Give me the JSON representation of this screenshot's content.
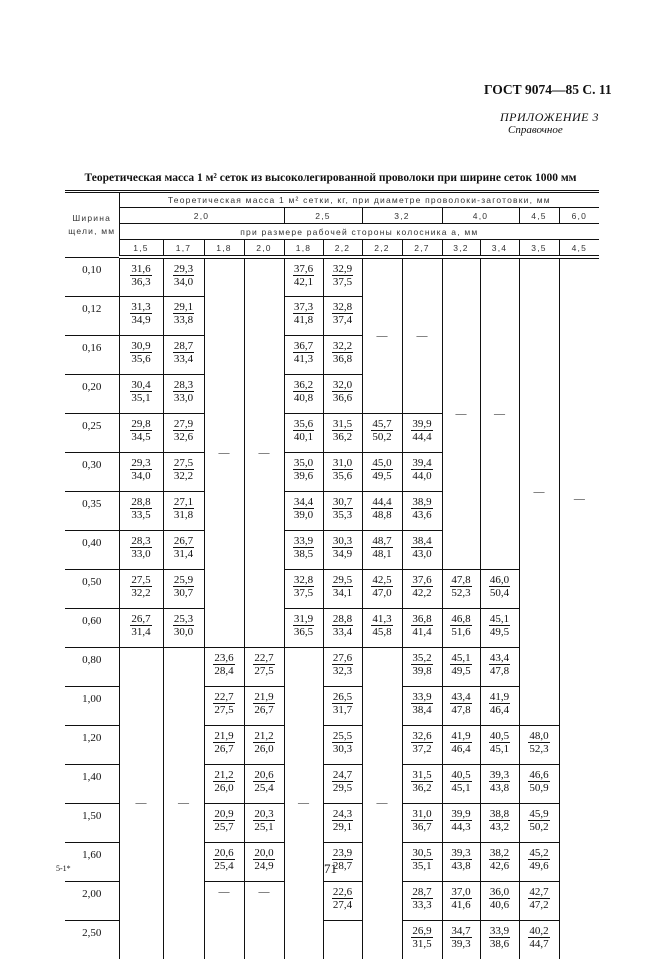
{
  "header": {
    "gost": "ГОСТ 9074—85 С. 11",
    "appendix": "ПРИЛОЖЕНИЕ 3",
    "reference": "Справочное"
  },
  "title": "Теоретическая масса 1 м² сеток из высоколегированной проволоки при ширине сеток 1000 мм",
  "table": {
    "width_header": "Ширина щели, мм",
    "mass_header": "Теоретическая масса 1 м² сетки, кг, при диаметре проволоки-заготовки, мм",
    "side_header": "при размере рабочей стороны колосника а, мм",
    "diameters": [
      {
        "label": "2,0",
        "cols": 4
      },
      {
        "label": "2,5",
        "cols": 2
      },
      {
        "label": "3,2",
        "cols": 2
      },
      {
        "label": "4,0",
        "cols": 2
      },
      {
        "label": "4,5",
        "cols": 1
      },
      {
        "label": "6,0",
        "cols": 1
      }
    ],
    "sides": [
      "1,5",
      "1,7",
      "1,8",
      "2,0",
      "1,8",
      "2,2",
      "2,2",
      "2,7",
      "3,2",
      "3,4",
      "3,5",
      "4,5"
    ],
    "widths": [
      "0,10",
      "0,12",
      "0,16",
      "0,20",
      "0,25",
      "0,30",
      "0,35",
      "0,40",
      "0,50",
      "0,60",
      "0,80",
      "1,00",
      "1,20",
      "1,40",
      "1,50",
      "1,60",
      "2,00",
      "2,50"
    ],
    "columns": [
      {
        "cells": [
          {
            "t": "31,6",
            "b": "36,3"
          },
          {
            "t": "31,3",
            "b": "34,9"
          },
          {
            "t": "30,9",
            "b": "35,6"
          },
          {
            "t": "30,4",
            "b": "35,1"
          },
          {
            "t": "29,8",
            "b": "34,5"
          },
          {
            "t": "29,3",
            "b": "34,0"
          },
          {
            "t": "28,8",
            "b": "33,5"
          },
          {
            "t": "28,3",
            "b": "33,0"
          },
          {
            "t": "27,5",
            "b": "32,2"
          },
          {
            "t": "26,7",
            "b": "31,4"
          },
          {
            "dash": "—",
            "span": 8
          }
        ]
      },
      {
        "cells": [
          {
            "t": "29,3",
            "b": "34,0"
          },
          {
            "t": "29,1",
            "b": "33,8"
          },
          {
            "t": "28,7",
            "b": "33,4"
          },
          {
            "t": "28,3",
            "b": "33,0"
          },
          {
            "t": "27,9",
            "b": "32,6"
          },
          {
            "t": "27,5",
            "b": "32,2"
          },
          {
            "t": "27,1",
            "b": "31,8"
          },
          {
            "t": "26,7",
            "b": "31,4"
          },
          {
            "t": "25,9",
            "b": "30,7"
          },
          {
            "t": "25,3",
            "b": "30,0"
          },
          {
            "dash": "—",
            "span": 8
          }
        ]
      },
      {
        "cells": [
          {
            "dash": "—",
            "span": 10
          },
          {
            "t": "23,6",
            "b": "28,4"
          },
          {
            "t": "22,7",
            "b": "27,5"
          },
          {
            "t": "21,9",
            "b": "26,7"
          },
          {
            "t": "21,2",
            "b": "26,0"
          },
          {
            "t": "20,9",
            "b": "25,7"
          },
          {
            "t": "20,6",
            "b": "25,4"
          },
          {
            "dash": "—",
            "span": 2
          }
        ]
      },
      {
        "cells": [
          {
            "dash": "—",
            "span": 10
          },
          {
            "t": "22,7",
            "b": "27,5"
          },
          {
            "t": "21,9",
            "b": "26,7"
          },
          {
            "t": "21,2",
            "b": "26,0"
          },
          {
            "t": "20,6",
            "b": "25,4"
          },
          {
            "t": "20,3",
            "b": "25,1"
          },
          {
            "t": "20,0",
            "b": "24,9"
          },
          {
            "dash": "—",
            "span": 2
          }
        ]
      },
      {
        "cells": [
          {
            "t": "37,6",
            "b": "42,1"
          },
          {
            "t": "37,3",
            "b": "41,8"
          },
          {
            "t": "36,7",
            "b": "41,3"
          },
          {
            "t": "36,2",
            "b": "40,8"
          },
          {
            "t": "35,6",
            "b": "40,1"
          },
          {
            "t": "35,0",
            "b": "39,6"
          },
          {
            "t": "34,4",
            "b": "39,0"
          },
          {
            "t": "33,9",
            "b": "38,5"
          },
          {
            "t": "32,8",
            "b": "37,5"
          },
          {
            "t": "31,9",
            "b": "36,5"
          },
          {
            "dash": "—",
            "span": 8
          }
        ]
      },
      {
        "cells": [
          {
            "t": "32,9",
            "b": "37,5"
          },
          {
            "t": "32,8",
            "b": "37,4"
          },
          {
            "t": "32,2",
            "b": "36,8"
          },
          {
            "t": "32,0",
            "b": "36,6"
          },
          {
            "t": "31,5",
            "b": "36,2"
          },
          {
            "t": "31,0",
            "b": "35,6"
          },
          {
            "t": "30,7",
            "b": "35,3"
          },
          {
            "t": "30,3",
            "b": "34,9"
          },
          {
            "t": "29,5",
            "b": "34,1"
          },
          {
            "t": "28,8",
            "b": "33,4"
          },
          {
            "t": "27,6",
            "b": "32,3"
          },
          {
            "t": "26,5",
            "b": "31,7"
          },
          {
            "t": "25,5",
            "b": "30,3"
          },
          {
            "t": "24,7",
            "b": "29,5"
          },
          {
            "t": "24,3",
            "b": "29,1"
          },
          {
            "t": "23,9",
            "b": "28,7"
          },
          {
            "t": "22,6",
            "b": "27,4"
          },
          {
            "empty": true
          }
        ]
      },
      {
        "cells": [
          {
            "dash": "—",
            "span": 4
          },
          {
            "t": "45,7",
            "b": "50,2"
          },
          {
            "t": "45,0",
            "b": "49,5"
          },
          {
            "t": "44,4",
            "b": "48,8"
          },
          {
            "t": "48,7",
            "b": "48,1"
          },
          {
            "t": "42,5",
            "b": "47,0"
          },
          {
            "t": "41,3",
            "b": "45,8"
          },
          {
            "dash": "—",
            "span": 8
          }
        ]
      },
      {
        "cells": [
          {
            "dash": "—",
            "span": 4
          },
          {
            "t": "39,9",
            "b": "44,4"
          },
          {
            "t": "39,4",
            "b": "44,0"
          },
          {
            "t": "38,9",
            "b": "43,6"
          },
          {
            "t": "38,4",
            "b": "43,0"
          },
          {
            "t": "37,6",
            "b": "42,2"
          },
          {
            "t": "36,8",
            "b": "41,4"
          },
          {
            "t": "35,2",
            "b": "39,8"
          },
          {
            "t": "33,9",
            "b": "38,4"
          },
          {
            "t": "32,6",
            "b": "37,2"
          },
          {
            "t": "31,5",
            "b": "36,2"
          },
          {
            "t": "31,0",
            "b": "36,7"
          },
          {
            "t": "30,5",
            "b": "35,1"
          },
          {
            "t": "28,7",
            "b": "33,3"
          },
          {
            "t": "26,9",
            "b": "31,5"
          }
        ]
      },
      {
        "cells": [
          {
            "dash": "—",
            "span": 8
          },
          {
            "t": "47,8",
            "b": "52,3"
          },
          {
            "t": "46,8",
            "b": "51,6"
          },
          {
            "t": "45,1",
            "b": "49,5"
          },
          {
            "t": "43,4",
            "b": "47,8"
          },
          {
            "t": "41,9",
            "b": "46,4"
          },
          {
            "t": "40,5",
            "b": "45,1"
          },
          {
            "t": "39,9",
            "b": "44,3"
          },
          {
            "t": "39,3",
            "b": "43,8"
          },
          {
            "t": "37,0",
            "b": "41,6"
          },
          {
            "t": "34,7",
            "b": "39,3"
          }
        ]
      },
      {
        "cells": [
          {
            "dash": "—",
            "span": 8
          },
          {
            "t": "46,0",
            "b": "50,4"
          },
          {
            "t": "45,1",
            "b": "49,5"
          },
          {
            "t": "43,4",
            "b": "47,8"
          },
          {
            "t": "41,9",
            "b": "46,4"
          },
          {
            "t": "40,5",
            "b": "45,1"
          },
          {
            "t": "39,3",
            "b": "43,8"
          },
          {
            "t": "38,8",
            "b": "43,2"
          },
          {
            "t": "38,2",
            "b": "42,6"
          },
          {
            "t": "36,0",
            "b": "40,6"
          },
          {
            "t": "33,9",
            "b": "38,6"
          }
        ]
      },
      {
        "cells": [
          {
            "dash": "—",
            "span": 12
          },
          {
            "t": "48,0",
            "b": "52,3"
          },
          {
            "t": "46,6",
            "b": "50,9"
          },
          {
            "t": "45,9",
            "b": "50,2"
          },
          {
            "t": "45,2",
            "b": "49,6"
          },
          {
            "t": "42,7",
            "b": "47,2"
          },
          {
            "t": "40,2",
            "b": "44,7"
          }
        ]
      },
      {
        "cells": [
          {
            "dash": "—",
            "span": 18
          }
        ]
      }
    ]
  },
  "footer": {
    "signature": "5-1*",
    "page_number": "71"
  }
}
